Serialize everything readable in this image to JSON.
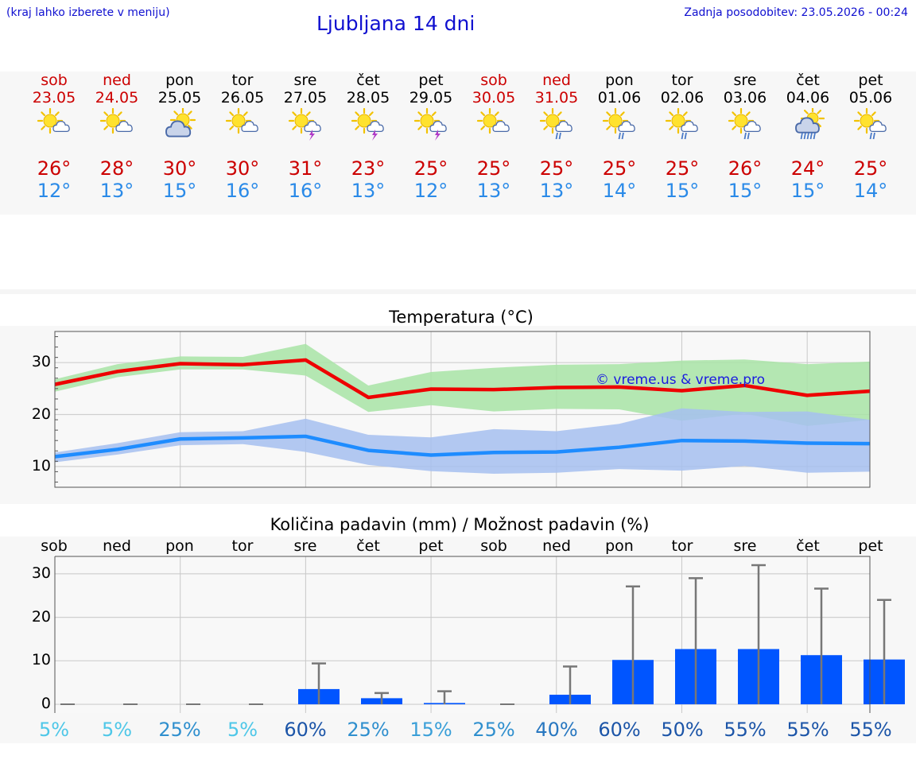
{
  "header": {
    "hint": "(kraj lahko izberete v meniju)",
    "title": "Ljubljana 14 dni",
    "updated": "Zadnja posodobitev: 23.05.2026 - 00:24"
  },
  "days": [
    {
      "name": "sob",
      "date": "23.05",
      "weekend": true,
      "icon": "sun-cloud-icon",
      "hi": "26°",
      "lo": "12°"
    },
    {
      "name": "ned",
      "date": "24.05",
      "weekend": true,
      "icon": "sun-cloud-icon",
      "hi": "28°",
      "lo": "13°"
    },
    {
      "name": "pon",
      "date": "25.05",
      "weekend": false,
      "icon": "cloud-sun-icon",
      "hi": "30°",
      "lo": "15°"
    },
    {
      "name": "tor",
      "date": "26.05",
      "weekend": false,
      "icon": "sun-cloud-icon",
      "hi": "30°",
      "lo": "16°"
    },
    {
      "name": "sre",
      "date": "27.05",
      "weekend": false,
      "icon": "sun-thunder-icon",
      "hi": "31°",
      "lo": "16°"
    },
    {
      "name": "čet",
      "date": "28.05",
      "weekend": false,
      "icon": "sun-thunder-icon",
      "hi": "23°",
      "lo": "13°"
    },
    {
      "name": "pet",
      "date": "29.05",
      "weekend": false,
      "icon": "sun-thunder-icon",
      "hi": "25°",
      "lo": "12°"
    },
    {
      "name": "sob",
      "date": "30.05",
      "weekend": true,
      "icon": "sun-cloud-icon",
      "hi": "25°",
      "lo": "13°"
    },
    {
      "name": "ned",
      "date": "31.05",
      "weekend": true,
      "icon": "sun-rain-icon",
      "hi": "25°",
      "lo": "13°"
    },
    {
      "name": "pon",
      "date": "01.06",
      "weekend": false,
      "icon": "sun-rain-icon",
      "hi": "25°",
      "lo": "14°"
    },
    {
      "name": "tor",
      "date": "02.06",
      "weekend": false,
      "icon": "sun-rain-icon",
      "hi": "25°",
      "lo": "15°"
    },
    {
      "name": "sre",
      "date": "03.06",
      "weekend": false,
      "icon": "sun-rain-icon",
      "hi": "26°",
      "lo": "15°"
    },
    {
      "name": "čet",
      "date": "04.06",
      "weekend": false,
      "icon": "cloud-heavy-rain-icon",
      "hi": "24°",
      "lo": "15°"
    },
    {
      "name": "pet",
      "date": "05.06",
      "weekend": false,
      "icon": "sun-rain-icon",
      "hi": "25°",
      "lo": "14°"
    }
  ],
  "chart_data": [
    {
      "type": "line",
      "title": "Temperatura (°C)",
      "watermark": "© vreme.us & vreme.pro",
      "x": [
        0,
        1,
        2,
        3,
        4,
        5,
        6,
        7,
        8,
        9,
        10,
        11,
        12,
        13
      ],
      "ylim": [
        6,
        36
      ],
      "yticks": [
        10,
        20,
        30
      ],
      "grid": true,
      "series": [
        {
          "role": "max",
          "color": "#ee0000",
          "values": [
            25.8,
            28.3,
            29.8,
            29.6,
            30.5,
            23.3,
            24.9,
            24.8,
            25.2,
            25.3,
            24.6,
            25.6,
            23.7,
            24.5
          ],
          "band_low": [
            24.4,
            27.2,
            28.7,
            28.7,
            27.5,
            20.5,
            21.8,
            20.6,
            21.1,
            21.0,
            18.8,
            20.2,
            17.8,
            19.0
          ],
          "band_high": [
            26.8,
            29.7,
            31.2,
            31.1,
            33.6,
            25.6,
            28.2,
            29.0,
            29.6,
            29.7,
            30.4,
            30.6,
            29.7,
            30.2
          ],
          "band_color": "#a8e4a6"
        },
        {
          "role": "min",
          "color": "#1e8cff",
          "values": [
            11.9,
            13.3,
            15.3,
            15.5,
            15.8,
            13.1,
            12.2,
            12.7,
            12.8,
            13.7,
            15.0,
            14.9,
            14.5,
            14.4
          ],
          "band_low": [
            10.8,
            12.3,
            14.1,
            14.3,
            12.8,
            10.3,
            9.1,
            8.6,
            8.8,
            9.5,
            9.2,
            10.1,
            8.8,
            9.0
          ],
          "band_high": [
            12.7,
            14.5,
            16.6,
            16.8,
            19.2,
            16.1,
            15.6,
            17.2,
            16.8,
            18.2,
            21.2,
            20.5,
            20.6,
            19.0
          ],
          "band_color": "#a6c0f0"
        }
      ]
    },
    {
      "type": "bar",
      "title": "Količina padavin (mm) / Možnost padavin (%)",
      "categories": [
        "sob",
        "ned",
        "pon",
        "tor",
        "sre",
        "čet",
        "pet",
        "sob",
        "ned",
        "pon",
        "tor",
        "sre",
        "čet",
        "pet"
      ],
      "ylim": [
        -2,
        34
      ],
      "yticks": [
        0,
        10,
        20,
        30
      ],
      "grid": true,
      "bar_color": "#0055ff",
      "values": [
        0,
        0,
        0,
        0,
        3.5,
        1.4,
        0.3,
        0,
        2.2,
        10.2,
        12.7,
        12.7,
        11.3,
        10.3
      ],
      "error_high": [
        0,
        0,
        0,
        0,
        9.4,
        2.6,
        3.0,
        0,
        8.7,
        27.1,
        29.0,
        32.0,
        26.6,
        24.0
      ],
      "probability": [
        "5%",
        "5%",
        "25%",
        "5%",
        "60%",
        "25%",
        "15%",
        "25%",
        "40%",
        "60%",
        "50%",
        "55%",
        "55%",
        "55%"
      ],
      "probability_colors": [
        "#4ec7e8",
        "#4ec7e8",
        "#2f8fce",
        "#4ec7e8",
        "#1c55a8",
        "#2f8fce",
        "#3a9fd8",
        "#2f8fce",
        "#2877c0",
        "#1c55a8",
        "#1c55a8",
        "#1c55a8",
        "#1c55a8",
        "#1c55a8"
      ]
    }
  ]
}
